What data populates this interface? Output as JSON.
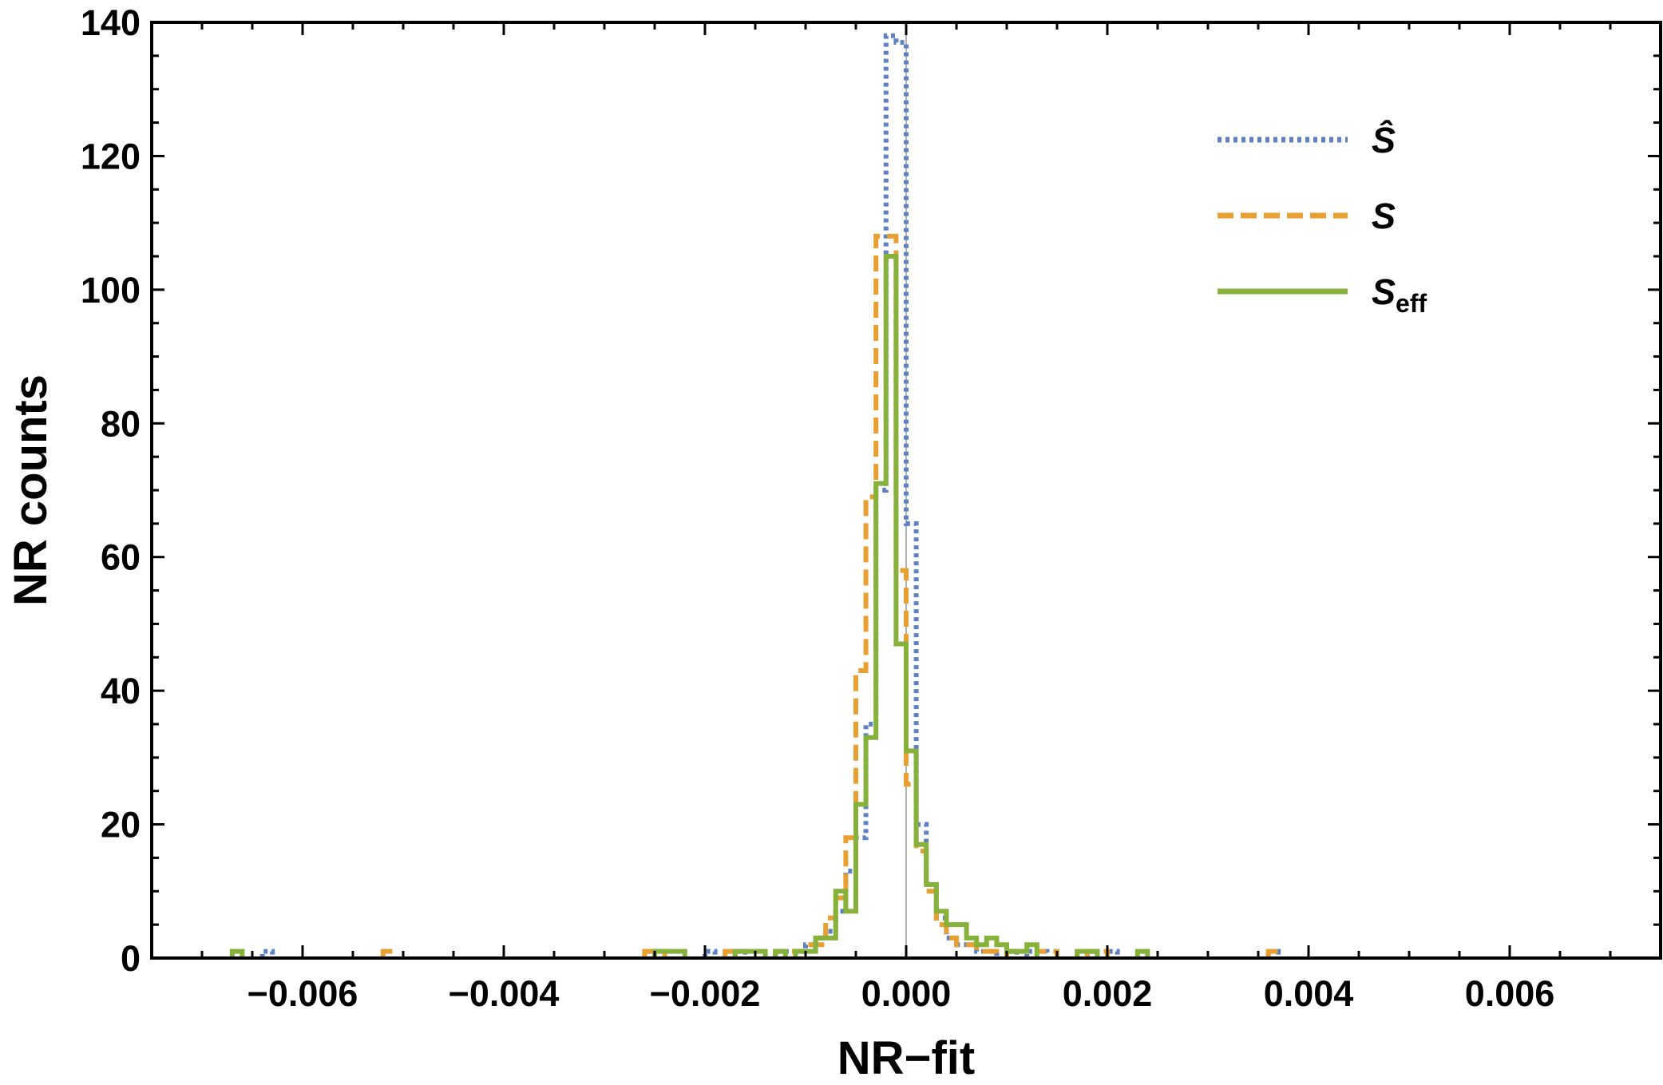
{
  "chart_data": {
    "type": "histogram",
    "xlabel": "NR−fit",
    "ylabel": "NR counts",
    "xlim": [
      -0.0075,
      0.0075
    ],
    "ylim": [
      0,
      140
    ],
    "x_ticks": [
      -0.006,
      -0.004,
      -0.002,
      0.0,
      0.002,
      0.004,
      0.006
    ],
    "x_tick_labels": [
      "−0.006",
      "−0.004",
      "−0.002",
      "0.000",
      "0.002",
      "0.004",
      "0.006"
    ],
    "y_ticks": [
      0,
      20,
      40,
      60,
      80,
      100,
      120,
      140
    ],
    "y_tick_labels": [
      "0",
      "20",
      "40",
      "60",
      "80",
      "100",
      "120",
      "140"
    ],
    "bin_width": 0.0001,
    "legend": {
      "position": "top-right"
    },
    "series": [
      {
        "key": "s_hat",
        "legend_main": "Ŝ",
        "legend_sub": "",
        "color": "#5e81c1",
        "style": "dotted",
        "bins": [
          [
            -0.0064,
            1
          ],
          [
            -0.0026,
            1
          ],
          [
            -0.002,
            1
          ],
          [
            -0.0017,
            1
          ],
          [
            -0.0013,
            1
          ],
          [
            -0.0012,
            1
          ],
          [
            -0.0011,
            1
          ],
          [
            -0.001,
            2
          ],
          [
            -0.0009,
            3
          ],
          [
            -0.0008,
            4
          ],
          [
            -0.0007,
            7
          ],
          [
            -0.0006,
            13
          ],
          [
            -0.0005,
            18
          ],
          [
            -0.0004,
            35
          ],
          [
            -0.0003,
            70
          ],
          [
            -0.0002,
            138
          ],
          [
            -0.0001,
            137
          ],
          [
            0.0,
            65
          ],
          [
            0.0001,
            20
          ],
          [
            0.0002,
            11
          ],
          [
            0.0003,
            6
          ],
          [
            0.0004,
            3
          ],
          [
            0.0005,
            2
          ],
          [
            0.0006,
            2
          ],
          [
            0.0007,
            1
          ],
          [
            0.0008,
            1
          ],
          [
            0.001,
            1
          ],
          [
            0.0012,
            1
          ],
          [
            0.0013,
            1
          ],
          [
            0.0018,
            1
          ],
          [
            0.002,
            1
          ],
          [
            0.0036,
            1
          ]
        ]
      },
      {
        "key": "s",
        "legend_main": "S",
        "legend_sub": "",
        "color": "#e8a033",
        "style": "dashed",
        "bins": [
          [
            -0.0052,
            1
          ],
          [
            -0.0026,
            1
          ],
          [
            -0.0025,
            1
          ],
          [
            -0.0018,
            1
          ],
          [
            -0.0013,
            1
          ],
          [
            -0.0012,
            1
          ],
          [
            -0.0011,
            1
          ],
          [
            -0.001,
            2
          ],
          [
            -0.0009,
            2
          ],
          [
            -0.0008,
            6
          ],
          [
            -0.0007,
            9
          ],
          [
            -0.0006,
            18
          ],
          [
            -0.0005,
            43
          ],
          [
            -0.0004,
            69
          ],
          [
            -0.0003,
            108
          ],
          [
            -0.0002,
            108
          ],
          [
            -0.0001,
            58
          ],
          [
            0.0,
            26
          ],
          [
            0.0001,
            16
          ],
          [
            0.0002,
            10
          ],
          [
            0.0003,
            5
          ],
          [
            0.0004,
            3
          ],
          [
            0.0005,
            2
          ],
          [
            0.0006,
            2
          ],
          [
            0.0007,
            1
          ],
          [
            0.0008,
            1
          ],
          [
            0.001,
            1
          ],
          [
            0.0013,
            1
          ],
          [
            0.0014,
            1
          ],
          [
            0.0018,
            1
          ],
          [
            0.0019,
            1
          ],
          [
            0.0036,
            1
          ]
        ]
      },
      {
        "key": "s_eff",
        "legend_main": "S",
        "legend_sub": "eff",
        "color": "#86b13a",
        "style": "solid",
        "bins": [
          [
            -0.0067,
            1
          ],
          [
            -0.0025,
            1
          ],
          [
            -0.0024,
            1
          ],
          [
            -0.0023,
            1
          ],
          [
            -0.0017,
            1
          ],
          [
            -0.0016,
            1
          ],
          [
            -0.0015,
            1
          ],
          [
            -0.0013,
            1
          ],
          [
            -0.0011,
            1
          ],
          [
            -0.001,
            1
          ],
          [
            -0.0009,
            3
          ],
          [
            -0.0008,
            3
          ],
          [
            -0.0007,
            10
          ],
          [
            -0.0006,
            7
          ],
          [
            -0.0005,
            23
          ],
          [
            -0.0004,
            33
          ],
          [
            -0.0003,
            71
          ],
          [
            -0.0002,
            105
          ],
          [
            -0.0001,
            47
          ],
          [
            0.0,
            31
          ],
          [
            0.0001,
            17
          ],
          [
            0.0002,
            11
          ],
          [
            0.0003,
            7
          ],
          [
            0.0004,
            5
          ],
          [
            0.0005,
            5
          ],
          [
            0.0006,
            3
          ],
          [
            0.0007,
            2
          ],
          [
            0.0008,
            3
          ],
          [
            0.0009,
            2
          ],
          [
            0.001,
            1
          ],
          [
            0.0011,
            1
          ],
          [
            0.0012,
            2
          ],
          [
            0.0017,
            1
          ],
          [
            0.0018,
            1
          ],
          [
            0.0023,
            1
          ]
        ]
      }
    ]
  }
}
